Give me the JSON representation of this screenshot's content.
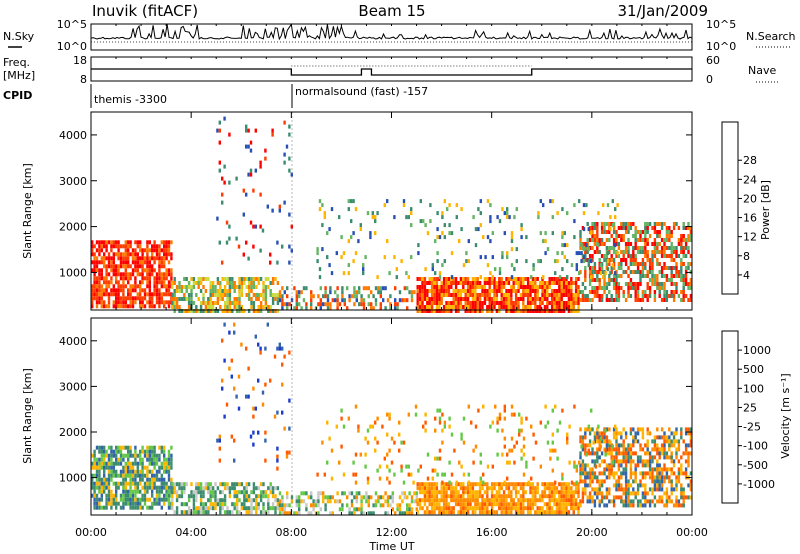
{
  "header": {
    "station": "Inuvik (fitACF)",
    "beam": "Beam 15",
    "date": "31/Jan/2009"
  },
  "panels": {
    "nsky": {
      "label": "N.Sky",
      "left_ticks": [
        "10^5",
        "10^0"
      ],
      "right_ticks": [
        "10^5",
        "10^0"
      ],
      "right_label": "N.Search"
    },
    "freq": {
      "label": "Freq.",
      "unit": "[MHz]",
      "left_ticks": [
        "18",
        "8"
      ],
      "right_ticks": [
        "60",
        "0"
      ],
      "right_label": "Nave"
    },
    "cpid": {
      "label": "CPID",
      "modes": [
        {
          "name": "themis -3300",
          "start_h": 0,
          "end_h": 8
        },
        {
          "name": "normalsound (fast) -157",
          "start_h": 8,
          "end_h": 24
        }
      ]
    }
  },
  "colors": {
    "power": [
      "#0000ff",
      "#2850b4",
      "#3c8c6e",
      "#64b464",
      "#c8dc3c",
      "#ffb400",
      "#ff7800",
      "#ff3c00",
      "#ff0000"
    ],
    "velocity": [
      "#ff0000",
      "#ff5a00",
      "#ff8c00",
      "#ffb400",
      "#c8c8c8",
      "#64c846",
      "#3c8c6e",
      "#3264aa",
      "#1e3cc8"
    ]
  },
  "chart_data": [
    {
      "type": "heatmap",
      "name": "Power",
      "xlabel": "",
      "ylabel": "Slant Range [km]",
      "x_range_hours": [
        0,
        24
      ],
      "ylim": [
        180,
        4500
      ],
      "yticks": [
        "1000",
        "2000",
        "3000",
        "4000"
      ],
      "colorbar_label": "Power [dB]",
      "colorbar_ticks": [
        "4",
        "8",
        "12",
        "16",
        "20",
        "24",
        "28"
      ],
      "scatter_regions": [
        {
          "t_start": 0.0,
          "t_end": 3.2,
          "r_min": 300,
          "r_max": 1700,
          "value": "28 dB"
        },
        {
          "t_start": 3.2,
          "t_end": 7.5,
          "r_min": 200,
          "r_max": 900,
          "value": "16 dB"
        },
        {
          "t_start": 13.0,
          "t_end": 19.5,
          "r_min": 200,
          "r_max": 900,
          "value": "28 dB"
        },
        {
          "t_start": 20.0,
          "t_end": 24.0,
          "r_min": 400,
          "r_max": 2100,
          "value": "12 dB"
        }
      ]
    },
    {
      "type": "heatmap",
      "name": "Velocity",
      "xlabel": "Time UT",
      "ylabel": "Slant Range [km]",
      "x_range_hours": [
        0,
        24
      ],
      "ylim": [
        180,
        4500
      ],
      "yticks": [
        "1000",
        "2000",
        "3000",
        "4000"
      ],
      "xticks": [
        "00:00",
        "04:00",
        "08:00",
        "12:00",
        "16:00",
        "20:00",
        "00:00"
      ],
      "colorbar_label": "Velocity [m s⁻¹]",
      "colorbar_ticks": [
        "1000",
        "500",
        "100",
        "25",
        "-25",
        "-100",
        "-500",
        "-1000"
      ],
      "scatter_regions": [
        {
          "t_start": 0.0,
          "t_end": 3.2,
          "r_min": 300,
          "r_max": 1700,
          "value": "100 m/s"
        },
        {
          "t_start": 3.2,
          "t_end": 7.5,
          "r_min": 200,
          "r_max": 900,
          "value": "100 m/s"
        },
        {
          "t_start": 13.0,
          "t_end": 19.5,
          "r_min": 200,
          "r_max": 900,
          "value": "-100 m/s"
        },
        {
          "t_start": 20.0,
          "t_end": 24.0,
          "r_min": 400,
          "r_max": 2100,
          "value": "-100 m/s"
        }
      ]
    }
  ]
}
